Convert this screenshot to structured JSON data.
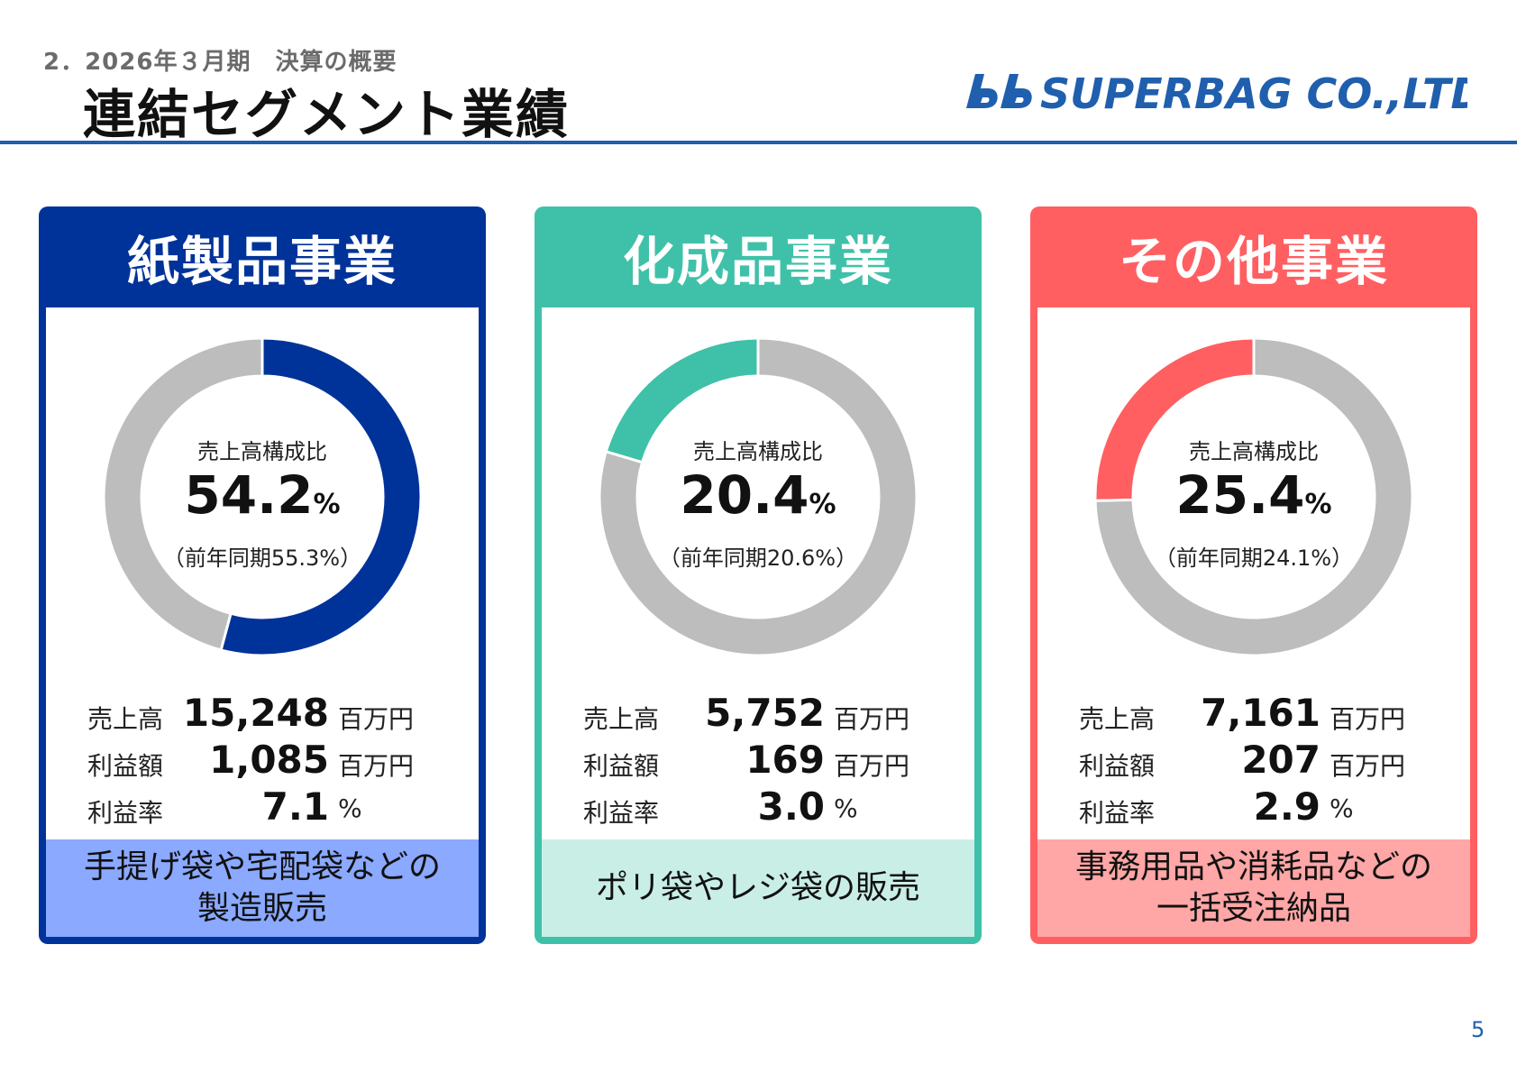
{
  "header": {
    "subtitle": "2．2026年３月期　決算の概要",
    "title": "連結セグメント業績",
    "logo_text": "SUPERBAG CO.,LTD."
  },
  "colors": {
    "rest": "#bdbdbd",
    "rule": "#1f5fae"
  },
  "segments": [
    {
      "name": "紙製品事業",
      "color": "#003399",
      "foot_color": "#8aa9ff",
      "center_caption": "売上高構成比",
      "share": "54.2",
      "share_unit": "%",
      "prev": "（前年同期55.3%）",
      "sales_label": "売上高",
      "sales": "15,248",
      "sales_unit": "百万円",
      "profit_label": "利益額",
      "profit": "1,085",
      "profit_unit": "百万円",
      "margin_label": "利益率",
      "margin": "7.1",
      "margin_unit": "%",
      "description": "手提げ袋や宅配袋などの\n製造販売"
    },
    {
      "name": "化成品事業",
      "color": "#3fc1a9",
      "foot_color": "#c9eee6",
      "center_caption": "売上高構成比",
      "share": "20.4",
      "share_unit": "%",
      "prev": "（前年同期20.6%）",
      "sales_label": "売上高",
      "sales": "5,752",
      "sales_unit": "百万円",
      "profit_label": "利益額",
      "profit": "169",
      "profit_unit": "百万円",
      "margin_label": "利益率",
      "margin": "3.0",
      "margin_unit": "%",
      "description": "ポリ袋やレジ袋の販売"
    },
    {
      "name": "その他事業",
      "color": "#ff5f61",
      "foot_color": "#ffa6a6",
      "center_caption": "売上高構成比",
      "share": "25.4",
      "share_unit": "%",
      "prev": "（前年同期24.1%）",
      "sales_label": "売上高",
      "sales": "7,161",
      "sales_unit": "百万円",
      "profit_label": "利益額",
      "profit": "207",
      "profit_unit": "百万円",
      "margin_label": "利益率",
      "margin": "2.9",
      "margin_unit": "%",
      "description": "事務用品や消耗品などの\n一括受注納品"
    }
  ],
  "chart_data": [
    {
      "type": "pie",
      "labels": [
        "紙製品事業",
        "その他"
      ],
      "values": [
        54.2,
        45.8
      ],
      "unit": "%"
    },
    {
      "type": "pie",
      "labels": [
        "化成品事業",
        "その他"
      ],
      "values": [
        20.4,
        79.6
      ],
      "unit": "%",
      "direction": "counterclockwise"
    },
    {
      "type": "pie",
      "labels": [
        "その他事業",
        "その他"
      ],
      "values": [
        25.4,
        74.6
      ],
      "unit": "%",
      "direction": "counterclockwise"
    }
  ],
  "page_number": "5"
}
